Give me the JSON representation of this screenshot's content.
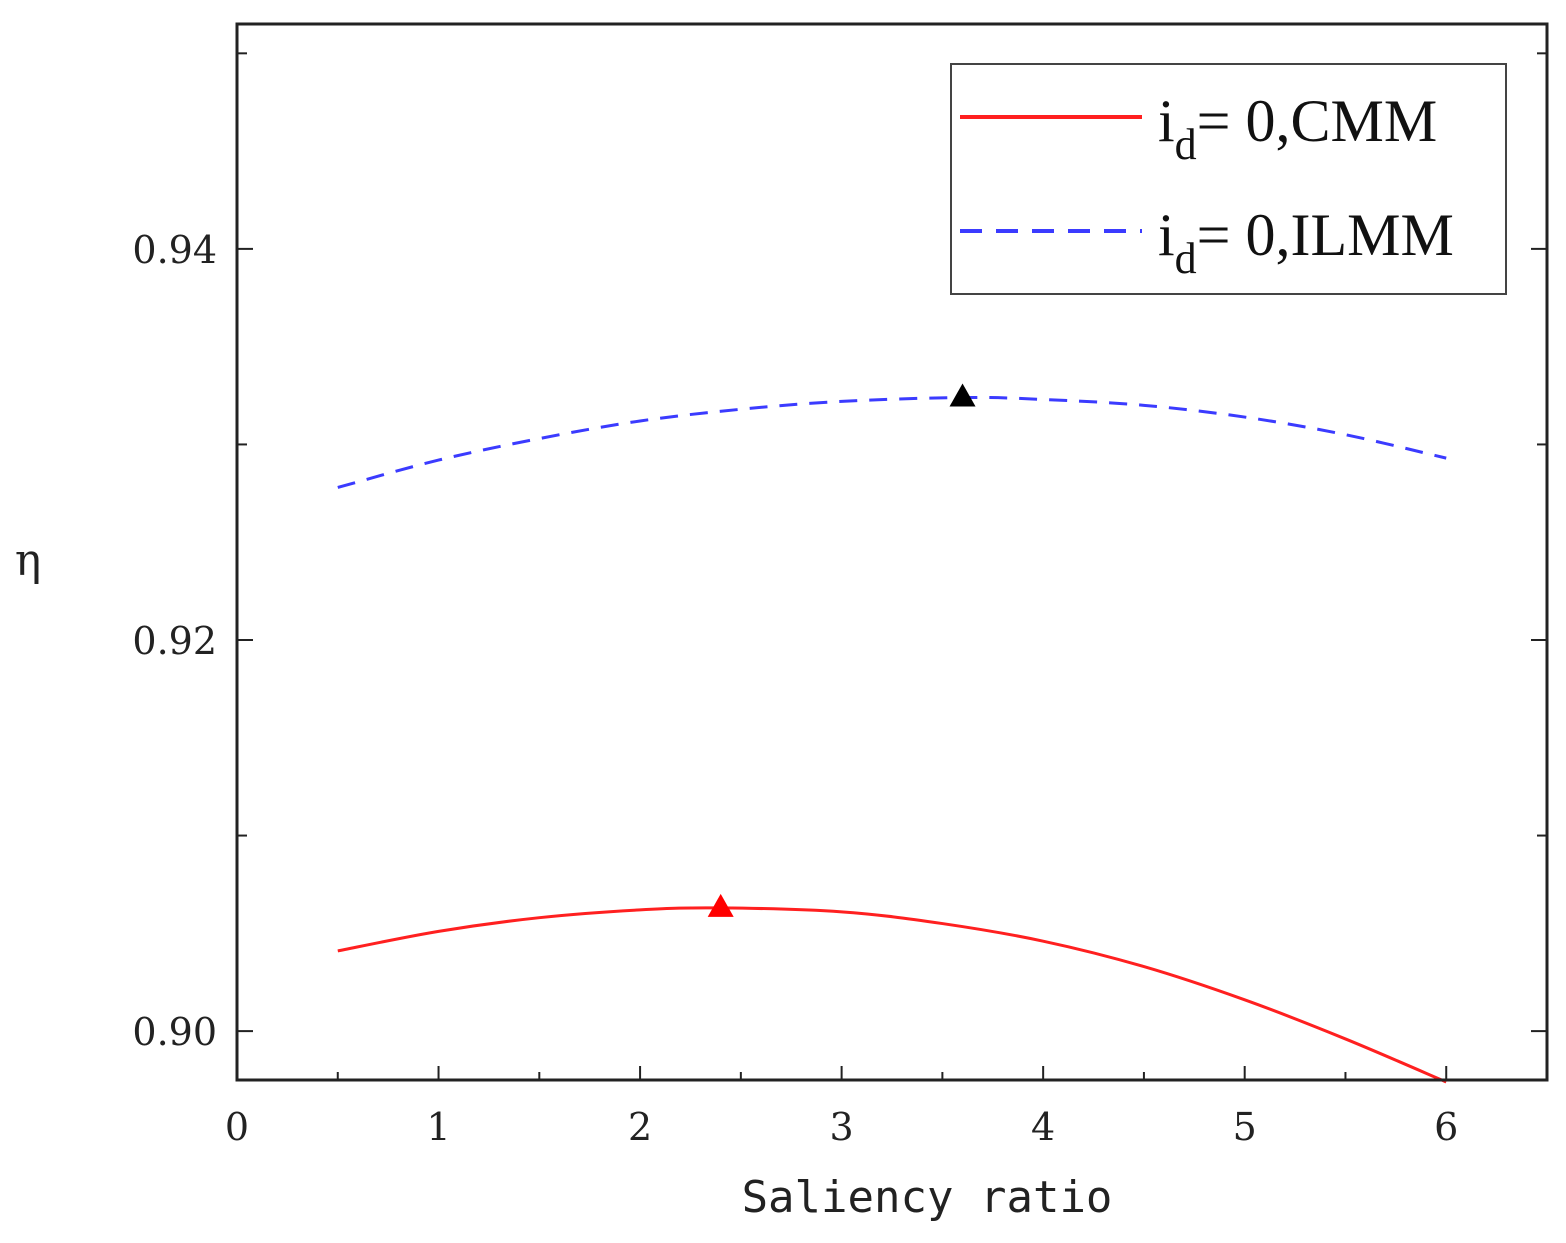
{
  "chart_data": {
    "type": "line",
    "title": "",
    "xlabel": "Saliency ratio",
    "ylabel": "η",
    "xlim": [
      0,
      6.5
    ],
    "ylim": [
      0.8975,
      0.9515
    ],
    "xticks": [
      0,
      1,
      2,
      3,
      4,
      5,
      6
    ],
    "xtick_labels": [
      "0",
      "1",
      "2",
      "3",
      "4",
      "5",
      "6"
    ],
    "yticks": [
      0.9,
      0.92,
      0.94
    ],
    "ytick_labels": [
      "0.90",
      "0.92",
      "0.94"
    ],
    "legend_position": "top-right",
    "series": [
      {
        "name": "i_d= 0,CMM",
        "legend_main": "i",
        "legend_sub": "d",
        "legend_rest": "= 0,CMM",
        "color": "#ff2020",
        "style": "solid",
        "x": [
          0.5,
          1.0,
          1.5,
          2.0,
          2.4,
          3.0,
          3.5,
          4.0,
          4.5,
          5.0,
          5.5,
          6.0
        ],
        "y": [
          0.9041,
          0.9051,
          0.9058,
          0.9062,
          0.9063,
          0.9061,
          0.9055,
          0.9046,
          0.9033,
          0.9016,
          0.8996,
          0.8974
        ],
        "peak": {
          "x": 2.4,
          "y": 0.9063,
          "marker_color": "#ff0000"
        }
      },
      {
        "name": "i_d= 0,ILMM",
        "legend_main": "i",
        "legend_sub": "d",
        "legend_rest": "= 0,ILMM",
        "color": "#3b3bff",
        "style": "dashed",
        "x": [
          0.5,
          1.0,
          1.5,
          2.0,
          2.5,
          3.0,
          3.6,
          4.0,
          4.5,
          5.0,
          5.5,
          6.0
        ],
        "y": [
          0.9278,
          0.9292,
          0.9303,
          0.9312,
          0.9318,
          0.9322,
          0.9324,
          0.9323,
          0.932,
          0.9314,
          0.9305,
          0.9293
        ],
        "peak": {
          "x": 3.6,
          "y": 0.9324,
          "marker_color": "#000000"
        }
      }
    ]
  }
}
